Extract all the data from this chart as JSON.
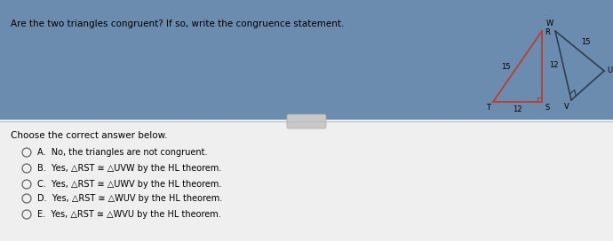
{
  "title": "Are the two triangles congruent? If so, write the congruence statement.",
  "bg_color": "#f0f0f0",
  "top_bg": "#6a8caf",
  "bottom_bg": "#f0f0f0",
  "choose_text": "Choose the correct answer below.",
  "options": [
    "A.  No, the triangles are not congruent.",
    "B.  Yes, △RST ≅ △UVW by the HL theorem.",
    "C.  Yes, △RST ≅ △UWV by the HL theorem.",
    "D.  Yes, △RST ≅ △WUV by the HL theorem.",
    "E.  Yes, △RST ≅ △WVU by the HL theorem."
  ],
  "tri1_color": "#c0392b",
  "tri2_color": "#2c3e50",
  "line_color": "#cccccc",
  "text_color": "#222222"
}
